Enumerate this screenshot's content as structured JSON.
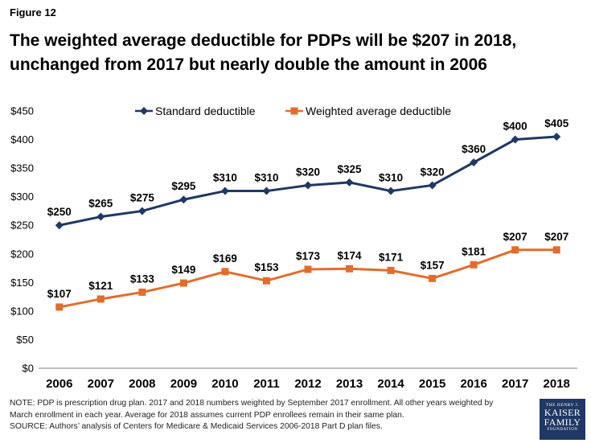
{
  "figure_label": "Figure 12",
  "title_lines": [
    "The weighted average deductible for PDPs will be $207 in 2018,",
    "unchanged from 2017 but nearly double the amount in 2006"
  ],
  "colors": {
    "standard": "#1f3864",
    "weighted": "#e46c2b",
    "axis": "#808080"
  },
  "chart_data": {
    "type": "line",
    "categories": [
      "2006",
      "2007",
      "2008",
      "2009",
      "2010",
      "2011",
      "2012",
      "2013",
      "2014",
      "2015",
      "2016",
      "2017",
      "2018"
    ],
    "ylim": [
      0,
      450
    ],
    "yticks": [
      0,
      50,
      100,
      150,
      200,
      250,
      300,
      350,
      400,
      450
    ],
    "ytick_labels": [
      "$0",
      "$50",
      "$100",
      "$150",
      "$200",
      "$250",
      "$300",
      "$350",
      "$400",
      "$450"
    ],
    "legend_position": "top",
    "grid": false,
    "series": [
      {
        "name": "Standard deductible",
        "marker": "diamond",
        "values": [
          250,
          265,
          275,
          295,
          310,
          310,
          320,
          325,
          310,
          320,
          360,
          400,
          405
        ],
        "labels": [
          "$250",
          "$265",
          "$275",
          "$295",
          "$310",
          "$310",
          "$320",
          "$325",
          "$310",
          "$320",
          "$360",
          "$400",
          "$405"
        ]
      },
      {
        "name": "Weighted average deductible",
        "marker": "square",
        "values": [
          107,
          121,
          133,
          149,
          169,
          153,
          173,
          174,
          171,
          157,
          181,
          207,
          207
        ],
        "labels": [
          "$107",
          "$121",
          "$133",
          "$149",
          "$169",
          "$153",
          "$173",
          "$174",
          "$171",
          "$157",
          "$181",
          "$207",
          "$207"
        ]
      }
    ]
  },
  "notes": [
    "NOTE: PDP is prescription drug plan. 2017 and 2018 numbers weighted by September 2017 enrollment. All other years weighted by",
    "March enrollment in each year. Average for 2018 assumes current PDP enrollees remain in their same plan.",
    "SOURCE: Authors’ analysis of Centers for Medicare & Medicaid Services 2006-2018 Part D plan files."
  ],
  "logo": {
    "line1": "THE HENRY J.",
    "line2": "KAISER",
    "line3": "FAMILY",
    "line4": "FOUNDATION"
  }
}
